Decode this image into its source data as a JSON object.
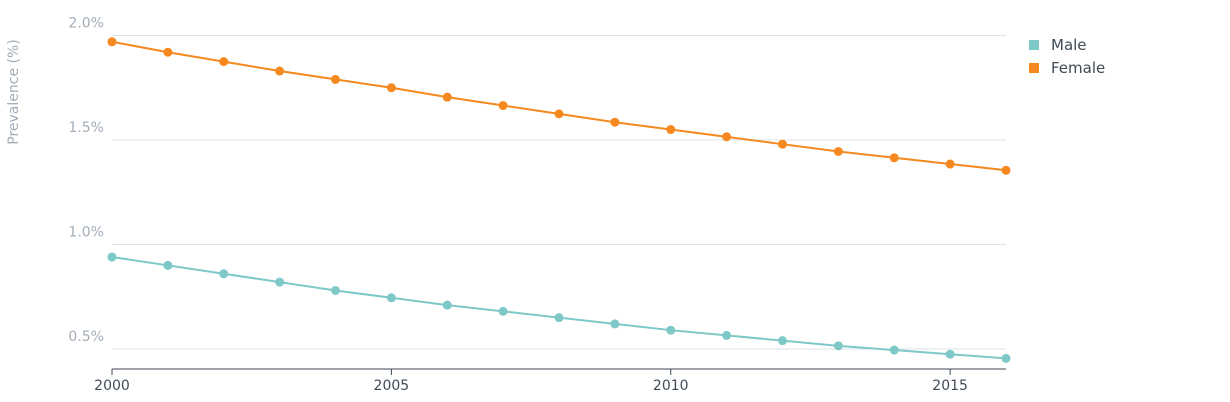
{
  "chart_data": {
    "type": "line",
    "title": "",
    "xlabel": "",
    "ylabel": "Prevalence (%)",
    "x": [
      2000,
      2001,
      2002,
      2003,
      2004,
      2005,
      2006,
      2007,
      2008,
      2009,
      2010,
      2011,
      2012,
      2013,
      2014,
      2015,
      2016
    ],
    "x_ticks": [
      "2000",
      "2005",
      "2010",
      "2015"
    ],
    "y_ticks": [
      "0.5%",
      "1.0%",
      "1.5%",
      "2.0%"
    ],
    "xlim": [
      2000,
      2016
    ],
    "ylim": [
      0.4,
      2.0
    ],
    "grid": "horizontal",
    "legend_position": "top-right",
    "series": [
      {
        "name": "Male",
        "color": "#7ec8c8",
        "values": [
          0.94,
          0.9,
          0.86,
          0.82,
          0.78,
          0.745,
          0.71,
          0.68,
          0.65,
          0.62,
          0.59,
          0.565,
          0.54,
          0.515,
          0.495,
          0.475,
          0.455
        ]
      },
      {
        "name": "Female",
        "color": "#f5891f",
        "values": [
          1.97,
          1.92,
          1.875,
          1.83,
          1.79,
          1.75,
          1.705,
          1.665,
          1.625,
          1.585,
          1.55,
          1.515,
          1.48,
          1.445,
          1.415,
          1.385,
          1.355
        ]
      }
    ]
  }
}
